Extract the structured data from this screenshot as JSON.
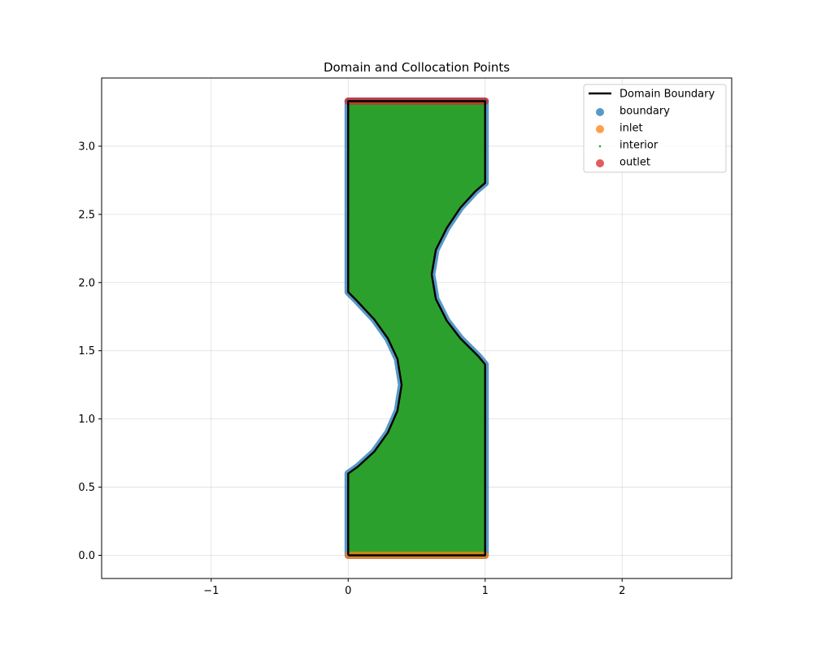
{
  "chart_data": {
    "type": "scatter",
    "title": "Domain and Collocation Points",
    "xlabel": "",
    "ylabel": "",
    "xlim": [
      -1.8,
      2.8
    ],
    "ylim": [
      -0.17,
      3.5
    ],
    "xticks": [
      {
        "value": -1,
        "label": "−1"
      },
      {
        "value": 0,
        "label": "0"
      },
      {
        "value": 1,
        "label": "1"
      },
      {
        "value": 2,
        "label": "2"
      }
    ],
    "yticks": [
      {
        "value": 0.0,
        "label": "0.0"
      },
      {
        "value": 0.5,
        "label": "0.5"
      },
      {
        "value": 1.0,
        "label": "1.0"
      },
      {
        "value": 1.5,
        "label": "1.5"
      },
      {
        "value": 2.0,
        "label": "2.0"
      },
      {
        "value": 2.5,
        "label": "2.5"
      },
      {
        "value": 3.0,
        "label": "3.0"
      }
    ],
    "grid": true,
    "legend_position": "top-right",
    "domain_boundary": {
      "name": "Domain Boundary",
      "color": "#000000",
      "points": [
        [
          0.0,
          0.0
        ],
        [
          1.0,
          0.0
        ],
        [
          1.0,
          1.4
        ],
        [
          0.95,
          1.46
        ],
        [
          0.82,
          1.59
        ],
        [
          0.72,
          1.72
        ],
        [
          0.64,
          1.88
        ],
        [
          0.61,
          2.06
        ],
        [
          0.64,
          2.24
        ],
        [
          0.72,
          2.4
        ],
        [
          0.82,
          2.55
        ],
        [
          0.93,
          2.67
        ],
        [
          1.0,
          2.73
        ],
        [
          1.0,
          3.33
        ],
        [
          0.0,
          3.33
        ],
        [
          0.0,
          1.93
        ],
        [
          0.06,
          1.87
        ],
        [
          0.19,
          1.73
        ],
        [
          0.29,
          1.59
        ],
        [
          0.36,
          1.44
        ],
        [
          0.39,
          1.25
        ],
        [
          0.36,
          1.06
        ],
        [
          0.29,
          0.9
        ],
        [
          0.19,
          0.76
        ],
        [
          0.07,
          0.65
        ],
        [
          0.0,
          0.6
        ],
        [
          0.0,
          0.0
        ]
      ]
    },
    "series": [
      {
        "name": "boundary",
        "color": "#1f77b4",
        "marker": "circle-large"
      },
      {
        "name": "inlet",
        "color": "#ff7f0e",
        "marker": "circle-large",
        "segment": [
          [
            0.0,
            0.0
          ],
          [
            1.0,
            0.0
          ]
        ]
      },
      {
        "name": "interior",
        "color": "#2ca02c",
        "marker": "dot-small"
      },
      {
        "name": "outlet",
        "color": "#d62728",
        "marker": "circle-large",
        "segment": [
          [
            0.0,
            3.33
          ],
          [
            1.0,
            3.33
          ]
        ]
      }
    ]
  }
}
